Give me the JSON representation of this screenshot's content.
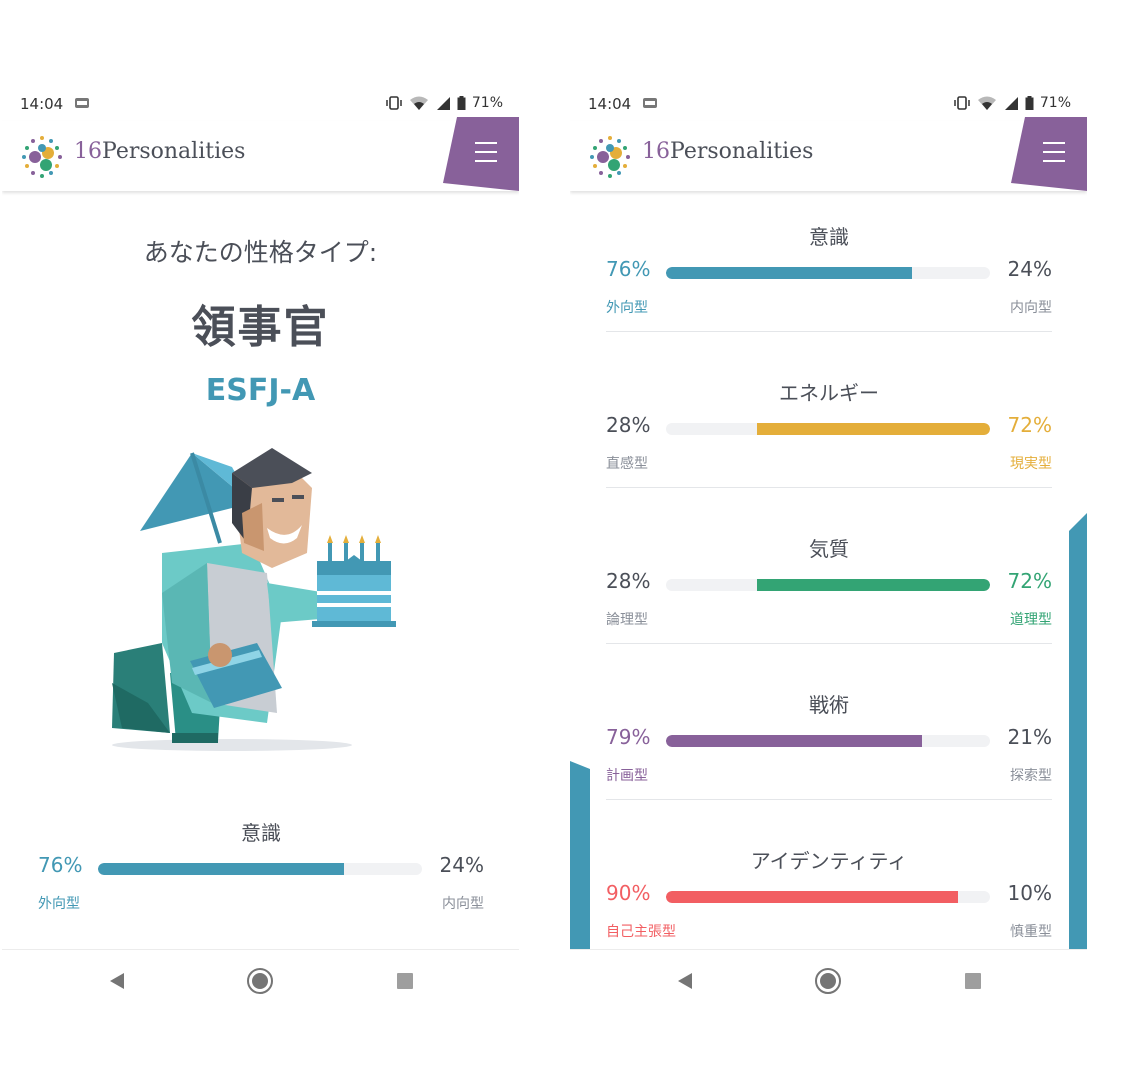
{
  "status": {
    "time": "14:04",
    "battery": "71%"
  },
  "brand": {
    "num": "16",
    "name": "Personalities"
  },
  "left_screen": {
    "your_type_label": "あなたの性格タイプ:",
    "type_name": "領事官",
    "type_code": "ESFJ-A",
    "trait": {
      "title": "意識",
      "left_pct": "76%",
      "right_pct": "24%",
      "left_label": "外向型",
      "right_label": "内向型",
      "fill": 0.76,
      "side": "left",
      "color": "#4298b4"
    }
  },
  "right_screen": {
    "traits": [
      {
        "title": "意識",
        "left_pct": "76%",
        "right_pct": "24%",
        "left_label": "外向型",
        "right_label": "内向型",
        "fill": 0.76,
        "side": "left",
        "color": "#4298b4"
      },
      {
        "title": "エネルギー",
        "left_pct": "28%",
        "right_pct": "72%",
        "left_label": "直感型",
        "right_label": "現実型",
        "fill": 0.72,
        "side": "right",
        "color": "#e4ae3a"
      },
      {
        "title": "気質",
        "left_pct": "28%",
        "right_pct": "72%",
        "left_label": "論理型",
        "right_label": "道理型",
        "fill": 0.72,
        "side": "right",
        "color": "#33a474"
      },
      {
        "title": "戦術",
        "left_pct": "79%",
        "right_pct": "21%",
        "left_label": "計画型",
        "right_label": "探索型",
        "fill": 0.79,
        "side": "left",
        "color": "#88619a"
      },
      {
        "title": "アイデンティティ",
        "left_pct": "90%",
        "right_pct": "10%",
        "left_label": "自己主張型",
        "right_label": "慎重型",
        "fill": 0.9,
        "side": "left",
        "color": "#f25e62"
      }
    ]
  },
  "colors": {
    "menu": "#88619a",
    "accent": "#4298b4",
    "muted_text": "#8a8f99"
  },
  "icons": {
    "menu": "hamburger-icon",
    "back": "back-triangle-icon",
    "home": "home-circle-icon",
    "recents": "recents-square-icon"
  }
}
